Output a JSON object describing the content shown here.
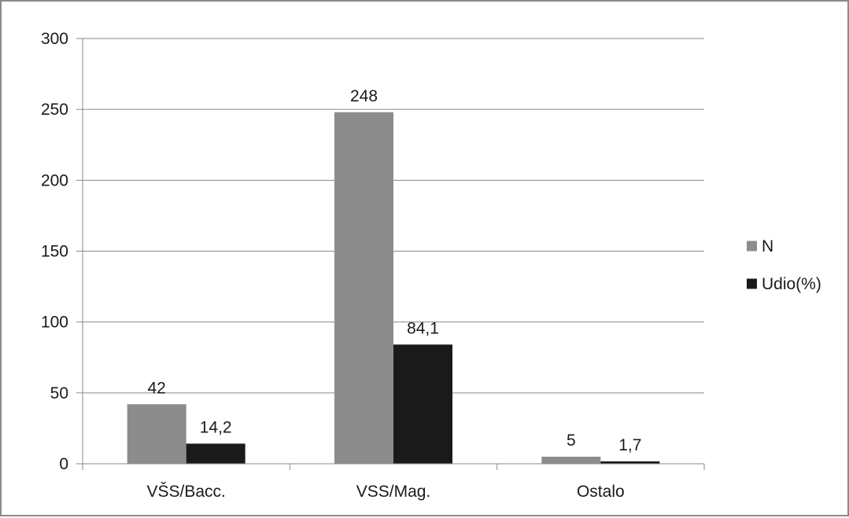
{
  "chart_data": {
    "type": "bar",
    "categories": [
      "VŠS/Bacc.",
      "VSS/Mag.",
      "Ostalo"
    ],
    "series": [
      {
        "name": "N",
        "values": [
          42,
          248,
          5
        ],
        "labels": [
          "42",
          "248",
          "5"
        ],
        "color": "#8c8c8c"
      },
      {
        "name": "Udio(%)",
        "values": [
          14.2,
          84.1,
          1.7
        ],
        "labels": [
          "14,2",
          "84,1",
          "1,7"
        ],
        "color": "#1a1a1a"
      }
    ],
    "yticks": [
      0,
      50,
      100,
      150,
      200,
      250,
      300
    ],
    "ylim": [
      0,
      300
    ],
    "grid": true,
    "legend": "right",
    "title": "",
    "xlabel": "",
    "ylabel": ""
  }
}
